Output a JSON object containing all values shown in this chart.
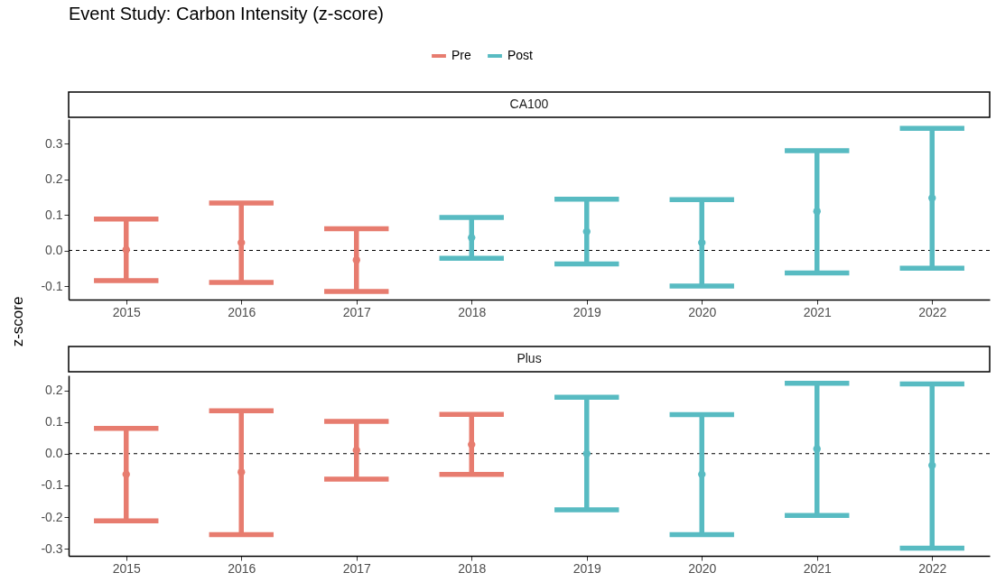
{
  "chart_data": [
    {
      "type": "scatter",
      "title": "Event Study: Carbon Intensity (z-score)",
      "subtitle": "CA100",
      "ylabel": "z-score",
      "categories": [
        "2015",
        "2016",
        "2017",
        "2018",
        "2019",
        "2020",
        "2021",
        "2022"
      ],
      "series": [
        {
          "name": "Pre",
          "color": "#e77c6f",
          "values": [
            0.002,
            0.022,
            -0.027,
            null,
            null,
            null,
            null,
            null
          ],
          "errors": [
            [
              -0.085,
              0.088
            ],
            [
              -0.09,
              0.133
            ],
            [
              -0.115,
              0.061
            ],
            null,
            null,
            null,
            null,
            null
          ]
        },
        {
          "name": "Post",
          "color": "#58bbc2",
          "values": [
            null,
            null,
            null,
            0.036,
            0.053,
            0.022,
            0.11,
            0.147
          ],
          "errors": [
            null,
            null,
            null,
            [
              -0.022,
              0.093
            ],
            [
              -0.038,
              0.144
            ],
            [
              -0.1,
              0.143
            ],
            [
              -0.063,
              0.28
            ],
            [
              -0.05,
              0.343
            ]
          ]
        }
      ],
      "ylim": [
        -0.138,
        0.369
      ],
      "yticks": [
        -0.1,
        {
          "value": 0,
          "label": "0.0"
        },
        0.1,
        0.2,
        0.3
      ],
      "ref_lines": [
        {
          "axis": "y",
          "value": 0,
          "line_style": "dashed",
          "color": "#000000"
        }
      ],
      "grid": false,
      "legend": "top",
      "marker": "circle"
    },
    {
      "type": "scatter",
      "subtitle": "Plus",
      "categories": [
        "2015",
        "2016",
        "2017",
        "2018",
        "2019",
        "2020",
        "2021",
        "2022"
      ],
      "series": [
        {
          "name": "Pre",
          "color": "#e77c6f",
          "values": [
            -0.065,
            -0.058,
            0.011,
            0.029,
            null,
            null,
            null,
            null
          ],
          "errors": [
            [
              -0.212,
              0.08
            ],
            [
              -0.255,
              0.135
            ],
            [
              -0.08,
              0.102
            ],
            [
              -0.065,
              0.124
            ],
            null,
            null,
            null,
            null
          ]
        },
        {
          "name": "Post",
          "color": "#58bbc2",
          "values": [
            null,
            null,
            null,
            null,
            0.0,
            -0.065,
            0.015,
            -0.037
          ],
          "errors": [
            null,
            null,
            null,
            null,
            [
              -0.177,
              0.178
            ],
            [
              -0.255,
              0.123
            ],
            [
              -0.195,
              0.222
            ],
            [
              -0.298,
              0.22
            ]
          ]
        }
      ],
      "ylim": [
        -0.322,
        0.247
      ],
      "yticks": [
        -0.3,
        -0.2,
        -0.1,
        {
          "value": 0,
          "label": "0.0"
        },
        0.1,
        0.2
      ],
      "ref_lines": [
        {
          "axis": "y",
          "value": 0,
          "line_style": "dashed",
          "color": "#000000"
        }
      ],
      "grid": false,
      "marker": "circle"
    }
  ]
}
